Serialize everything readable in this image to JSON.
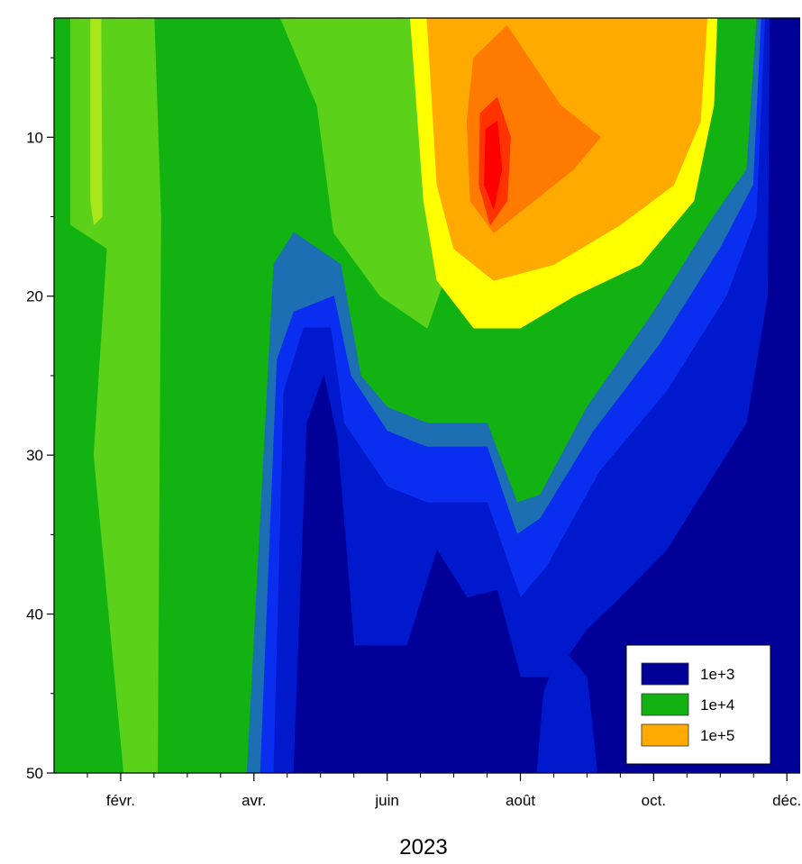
{
  "chart_data": {
    "type": "heatmap",
    "subtype": "filled-contour",
    "title": "",
    "xlabel": "2023",
    "ylabel": "",
    "y_axis_inverted": true,
    "ylim": [
      2.5,
      50
    ],
    "yticks": [
      10,
      20,
      30,
      40,
      50
    ],
    "x_tick_labels": [
      "févr.",
      "avr.",
      "juin",
      "août",
      "oct.",
      "déc."
    ],
    "x_tick_months": [
      2,
      4,
      6,
      8,
      10,
      12
    ],
    "legend": {
      "placement": "bottom-right",
      "entries": [
        {
          "label": "1e+3",
          "color": "#000099"
        },
        {
          "label": "1e+4",
          "color": "#11b211"
        },
        {
          "label": "1e+5",
          "color": "#ffaa00"
        }
      ]
    },
    "levels": [
      {
        "value": 1000,
        "color": "#000099"
      },
      {
        "value": 2500,
        "color": "#0019cc"
      },
      {
        "value": 5000,
        "color": "#0a2ef0"
      },
      {
        "value": 8000,
        "color": "#1d6fb3"
      },
      {
        "value": 10000,
        "color": "#11b211"
      },
      {
        "value": 25000,
        "color": "#5bd11a"
      },
      {
        "value": 50000,
        "color": "#a9e61a"
      },
      {
        "value": 80000,
        "color": "#ffff00"
      },
      {
        "value": 100000,
        "color": "#ffaa00"
      },
      {
        "value": 200000,
        "color": "#ff7a00"
      },
      {
        "value": 400000,
        "color": "#ff3300"
      },
      {
        "value": 600000,
        "color": "#ff0000"
      }
    ],
    "regions": [
      {
        "level": 4,
        "points": [
          [
            1.0,
            2.5
          ],
          [
            12.2,
            2.5
          ],
          [
            12.2,
            50
          ],
          [
            1.0,
            50
          ]
        ]
      },
      {
        "level": 5,
        "points": [
          [
            1.25,
            2.5
          ],
          [
            2.5,
            2.5
          ],
          [
            2.6,
            15
          ],
          [
            2.55,
            50
          ],
          [
            2.05,
            50
          ],
          [
            1.6,
            30
          ],
          [
            1.8,
            17
          ],
          [
            1.25,
            15.5
          ]
        ]
      },
      {
        "level": 6,
        "points": [
          [
            1.55,
            2.5
          ],
          [
            1.7,
            2.5
          ],
          [
            1.72,
            15
          ],
          [
            1.6,
            15.5
          ],
          [
            1.55,
            14
          ]
        ]
      },
      {
        "level": 5,
        "points": [
          [
            4.4,
            2.5
          ],
          [
            6.45,
            2.5
          ],
          [
            6.7,
            12
          ],
          [
            6.85,
            19
          ],
          [
            6.6,
            22
          ],
          [
            5.9,
            20
          ],
          [
            5.2,
            16
          ],
          [
            4.95,
            8
          ]
        ]
      },
      {
        "level": 3,
        "points": [
          [
            3.9,
            50
          ],
          [
            4.3,
            18
          ],
          [
            4.6,
            16
          ],
          [
            5.3,
            18
          ],
          [
            5.6,
            25
          ],
          [
            6.0,
            27
          ],
          [
            6.6,
            28
          ],
          [
            7.5,
            28
          ],
          [
            7.95,
            33
          ],
          [
            8.3,
            32.5
          ],
          [
            9.0,
            27
          ],
          [
            10.0,
            21
          ],
          [
            10.9,
            15
          ],
          [
            11.4,
            12
          ],
          [
            11.55,
            2.5
          ],
          [
            12.2,
            2.5
          ],
          [
            12.2,
            50
          ]
        ]
      },
      {
        "level": 2,
        "points": [
          [
            4.1,
            50
          ],
          [
            4.35,
            24
          ],
          [
            4.6,
            21
          ],
          [
            5.2,
            20
          ],
          [
            5.45,
            25
          ],
          [
            6.0,
            28.5
          ],
          [
            6.6,
            29.5
          ],
          [
            7.5,
            29.5
          ],
          [
            7.95,
            35
          ],
          [
            8.3,
            34
          ],
          [
            9.1,
            28.5
          ],
          [
            10.1,
            23
          ],
          [
            11.0,
            17
          ],
          [
            11.5,
            13
          ],
          [
            11.62,
            2.5
          ],
          [
            12.2,
            2.5
          ],
          [
            12.2,
            50
          ]
        ]
      },
      {
        "level": 1,
        "points": [
          [
            4.3,
            50
          ],
          [
            4.45,
            26
          ],
          [
            4.75,
            22
          ],
          [
            5.15,
            22
          ],
          [
            5.35,
            28
          ],
          [
            6.0,
            32
          ],
          [
            6.6,
            33
          ],
          [
            7.5,
            33
          ],
          [
            8.0,
            39
          ],
          [
            8.4,
            37
          ],
          [
            9.2,
            31
          ],
          [
            10.2,
            26
          ],
          [
            11.1,
            20
          ],
          [
            11.55,
            15
          ],
          [
            11.68,
            2.5
          ],
          [
            12.2,
            2.5
          ],
          [
            12.2,
            50
          ]
        ]
      },
      {
        "level": 0,
        "points": [
          [
            4.6,
            50
          ],
          [
            4.8,
            28
          ],
          [
            5.05,
            25
          ],
          [
            5.25,
            29
          ],
          [
            5.5,
            42
          ],
          [
            6.3,
            42
          ],
          [
            6.75,
            36
          ],
          [
            7.2,
            39
          ],
          [
            7.65,
            38.5
          ],
          [
            8.0,
            44
          ],
          [
            8.5,
            44
          ],
          [
            9.0,
            41
          ],
          [
            9.5,
            39
          ],
          [
            10.2,
            36
          ],
          [
            10.8,
            32
          ],
          [
            11.4,
            28
          ],
          [
            11.72,
            20
          ],
          [
            11.75,
            2.5
          ],
          [
            12.2,
            2.5
          ],
          [
            12.2,
            50
          ]
        ]
      },
      {
        "level": 1,
        "points": [
          [
            8.25,
            50
          ],
          [
            8.35,
            45
          ],
          [
            8.6,
            42
          ],
          [
            9.0,
            44
          ],
          [
            9.15,
            50
          ]
        ]
      },
      {
        "level": 7,
        "points": [
          [
            6.35,
            2.5
          ],
          [
            10.95,
            2.5
          ],
          [
            10.9,
            8
          ],
          [
            10.6,
            14
          ],
          [
            9.8,
            18
          ],
          [
            8.8,
            20
          ],
          [
            8.0,
            22
          ],
          [
            7.3,
            22
          ],
          [
            6.75,
            19
          ],
          [
            6.55,
            14
          ]
        ]
      },
      {
        "level": 8,
        "points": [
          [
            6.6,
            2.5
          ],
          [
            10.8,
            2.5
          ],
          [
            10.7,
            9
          ],
          [
            10.3,
            13
          ],
          [
            9.5,
            15.5
          ],
          [
            8.5,
            18
          ],
          [
            7.6,
            19
          ],
          [
            7.0,
            17
          ],
          [
            6.75,
            13
          ]
        ]
      },
      {
        "level": 9,
        "points": [
          [
            7.3,
            5
          ],
          [
            7.8,
            3
          ],
          [
            8.6,
            8
          ],
          [
            9.2,
            10
          ],
          [
            8.8,
            12
          ],
          [
            8.2,
            14
          ],
          [
            7.6,
            16
          ],
          [
            7.25,
            14
          ],
          [
            7.2,
            9
          ]
        ]
      },
      {
        "level": 10,
        "points": [
          [
            7.4,
            8.5
          ],
          [
            7.65,
            7.5
          ],
          [
            7.85,
            10
          ],
          [
            7.8,
            14
          ],
          [
            7.55,
            15.5
          ],
          [
            7.38,
            13
          ]
        ]
      },
      {
        "level": 11,
        "points": [
          [
            7.48,
            9.5
          ],
          [
            7.65,
            9.0
          ],
          [
            7.72,
            12
          ],
          [
            7.6,
            14.5
          ],
          [
            7.46,
            13
          ]
        ]
      }
    ]
  }
}
